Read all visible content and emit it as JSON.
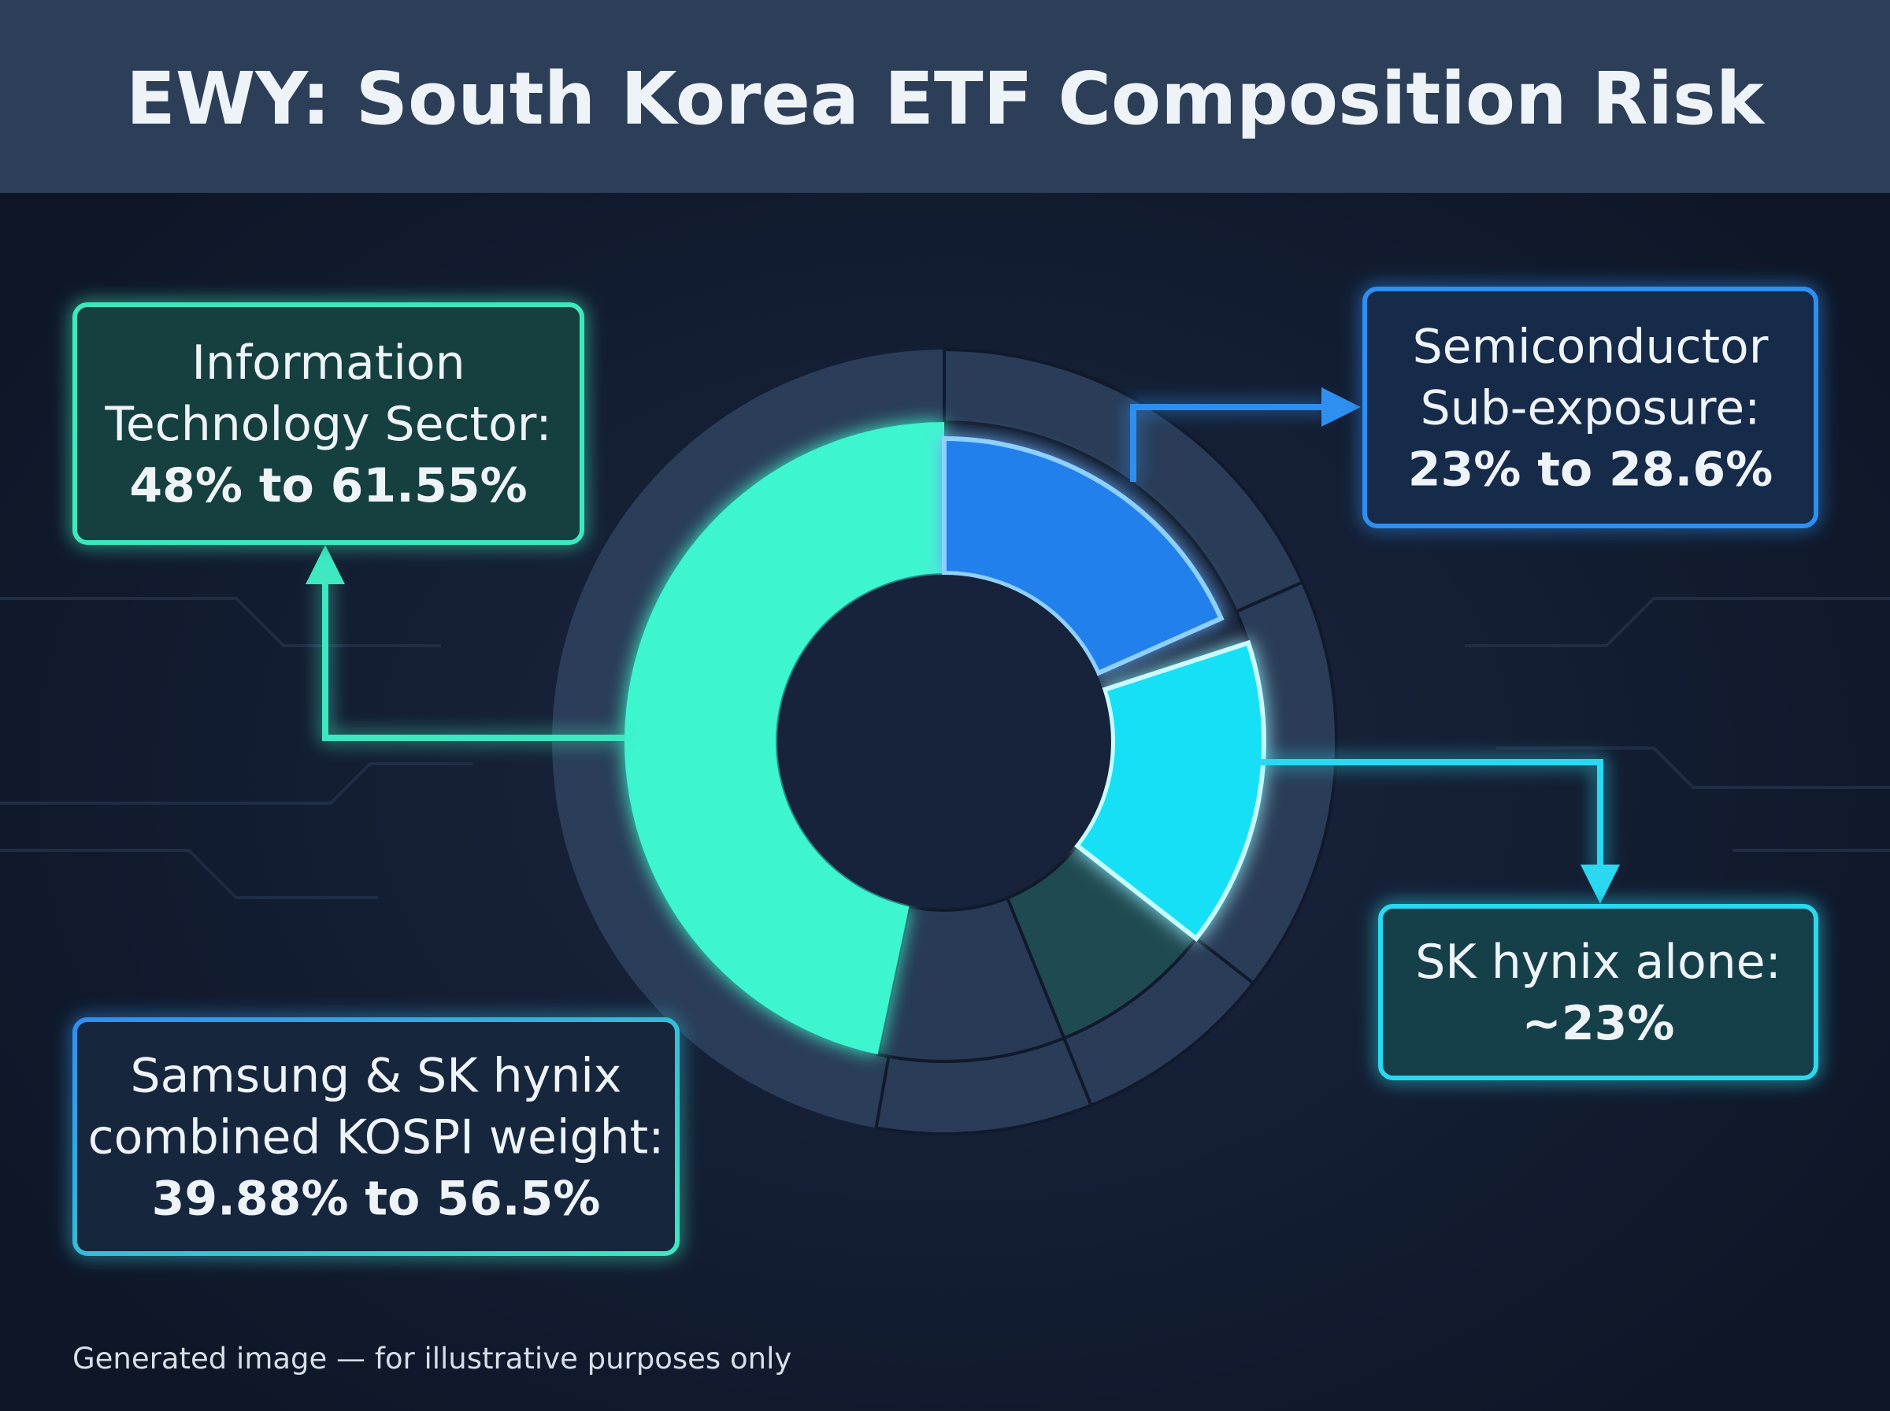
{
  "title": "EWY: South Korea ETF Composition Risk",
  "callouts": [
    {
      "lines": [
        "Information",
        "Technology Sector:"
      ],
      "value": "48% to 61.55%"
    },
    {
      "lines": [
        "Semiconductor",
        "Sub-exposure:"
      ],
      "value": "23% to 28.6%"
    },
    {
      "lines": [
        "SK hynix alone:"
      ],
      "value": "~23%"
    },
    {
      "lines": [
        "Samsung & SK hynix",
        "combined KOSPI weight:"
      ],
      "value": "39.88% to 56.5%"
    }
  ],
  "footer": "Generated image — for illustrative purposes only"
}
